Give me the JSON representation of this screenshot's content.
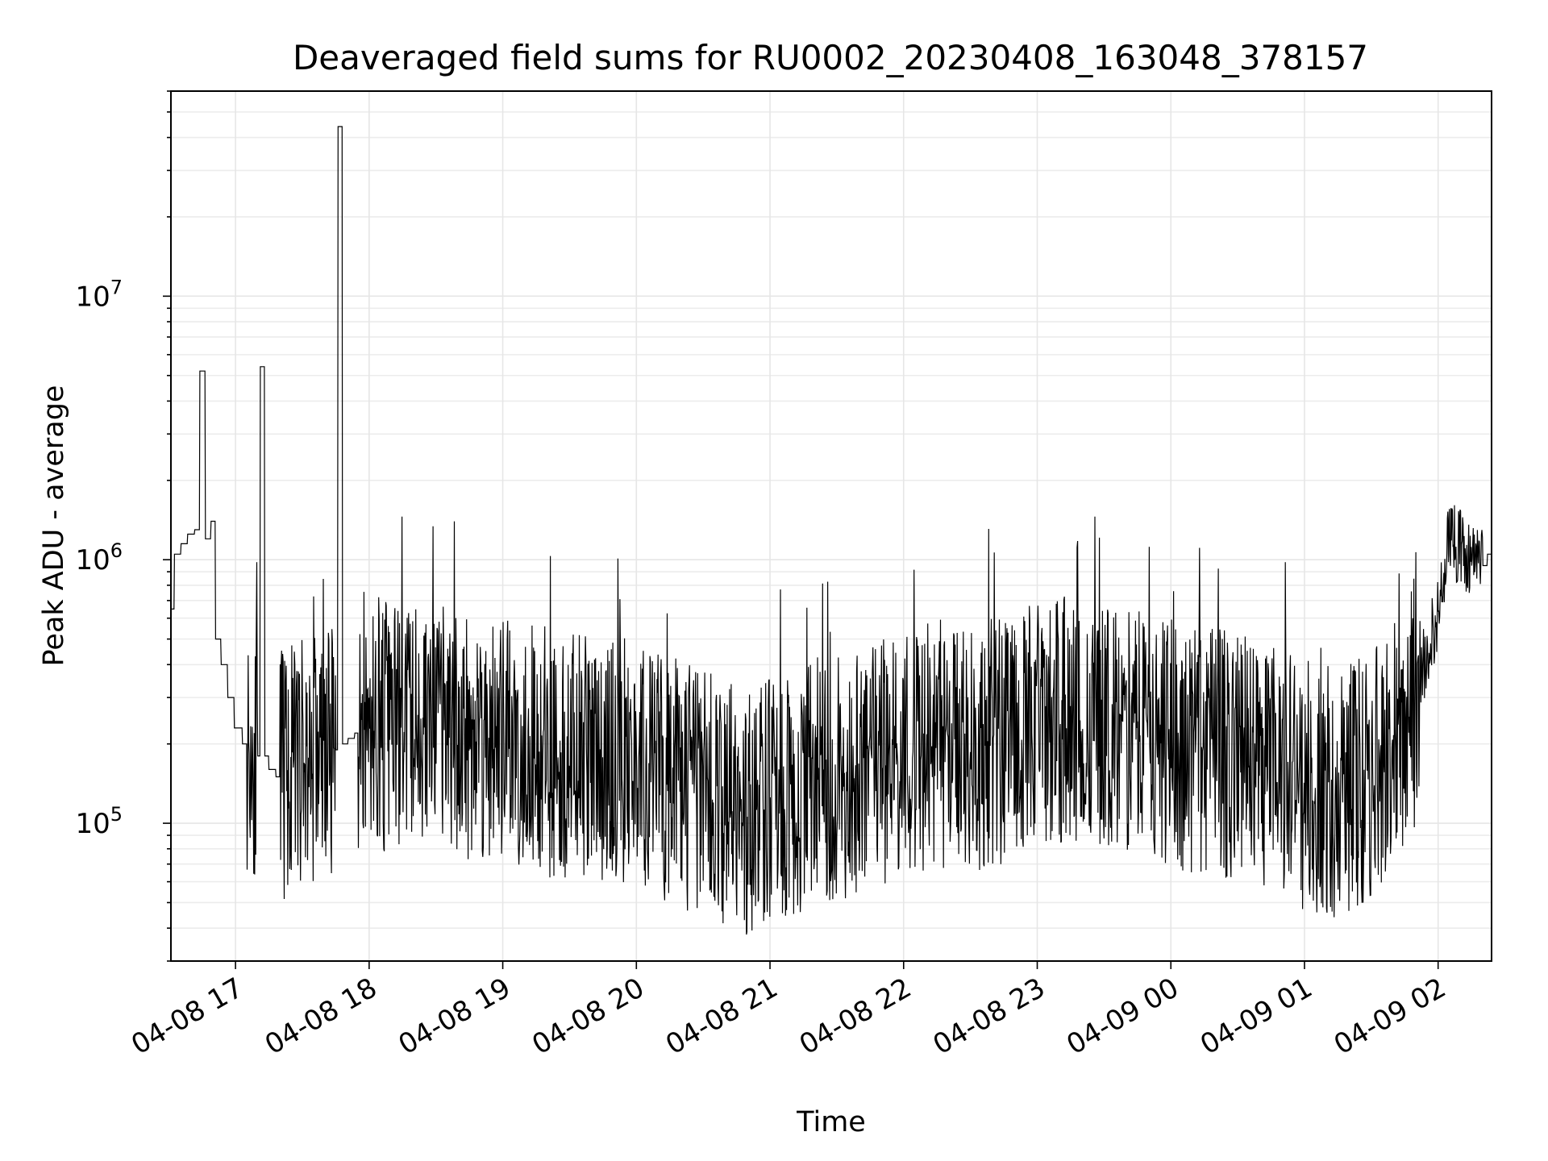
{
  "chart_data": {
    "type": "line",
    "title": "Deaveraged field sums for RU0002_20230408_163048_378157",
    "xlabel": "Time",
    "ylabel": "Peak ADU - average",
    "y_scale": "log",
    "ylim": [
      30000,
      60000000
    ],
    "xlim": [
      "2023-04-08 16:31",
      "2023-04-09 02:24"
    ],
    "grid": true,
    "line_color": "#000000",
    "x_ticks": [
      {
        "label": "04-08 17",
        "time": "2023-04-08 17:00"
      },
      {
        "label": "04-08 18",
        "time": "2023-04-08 18:00"
      },
      {
        "label": "04-08 19",
        "time": "2023-04-08 19:00"
      },
      {
        "label": "04-08 20",
        "time": "2023-04-08 20:00"
      },
      {
        "label": "04-08 21",
        "time": "2023-04-08 21:00"
      },
      {
        "label": "04-08 22",
        "time": "2023-04-08 22:00"
      },
      {
        "label": "04-08 23",
        "time": "2023-04-08 23:00"
      },
      {
        "label": "04-09 00",
        "time": "2023-04-09 00:00"
      },
      {
        "label": "04-09 01",
        "time": "2023-04-09 01:00"
      },
      {
        "label": "04-09 02",
        "time": "2023-04-09 02:00"
      }
    ],
    "y_ticks": [
      {
        "base": "10",
        "exp": "5",
        "value": 100000
      },
      {
        "base": "10",
        "exp": "6",
        "value": 1000000
      },
      {
        "base": "10",
        "exp": "7",
        "value": 10000000
      }
    ],
    "series": [
      {
        "x": [
          "2023-04-08 16:31",
          "2023-04-08 16:34",
          "2023-04-08 16:37",
          "2023-04-08 16:40",
          "2023-04-08 16:43",
          "2023-04-08 16:45",
          "2023-04-08 16:48",
          "2023-04-08 16:50",
          "2023-04-08 16:52",
          "2023-04-08 16:55",
          "2023-04-08 16:58",
          "2023-04-08 17:01",
          "2023-04-08 17:05",
          "2023-04-08 17:10",
          "2023-04-08 17:12",
          "2023-04-08 17:14",
          "2023-04-08 17:16",
          "2023-04-08 17:20",
          "2023-04-08 17:25",
          "2023-04-08 17:30",
          "2023-04-08 17:35",
          "2023-04-08 17:40",
          "2023-04-08 17:45",
          "2023-04-08 17:47",
          "2023-04-08 17:49",
          "2023-04-08 17:52",
          "2023-04-08 17:55",
          "2023-04-08 18:00",
          "2023-04-08 18:10",
          "2023-04-08 18:20",
          "2023-04-08 18:30",
          "2023-04-08 18:40",
          "2023-04-08 18:50",
          "2023-04-08 19:00",
          "2023-04-08 19:15",
          "2023-04-08 19:30",
          "2023-04-08 19:45",
          "2023-04-08 20:00",
          "2023-04-08 20:15",
          "2023-04-08 20:30",
          "2023-04-08 20:45",
          "2023-04-08 21:00",
          "2023-04-08 21:15",
          "2023-04-08 21:30",
          "2023-04-08 21:45",
          "2023-04-08 22:00",
          "2023-04-08 22:15",
          "2023-04-08 22:30",
          "2023-04-08 22:45",
          "2023-04-08 23:00",
          "2023-04-08 23:15",
          "2023-04-08 23:30",
          "2023-04-08 23:45",
          "2023-04-09 00:00",
          "2023-04-09 00:15",
          "2023-04-09 00:30",
          "2023-04-09 00:45",
          "2023-04-09 01:00",
          "2023-04-09 01:15",
          "2023-04-09 01:30",
          "2023-04-09 01:45",
          "2023-04-09 01:50",
          "2023-04-09 01:55",
          "2023-04-09 02:00",
          "2023-04-09 02:05",
          "2023-04-09 02:10",
          "2023-04-09 02:15",
          "2023-04-09 02:20",
          "2023-04-09 02:24"
        ],
        "y": [
          650000,
          1050000,
          1150000,
          1250000,
          1300000,
          5200000,
          1200000,
          1400000,
          500000,
          400000,
          300000,
          230000,
          200000,
          180000,
          5400000,
          180000,
          160000,
          150000,
          160000,
          170000,
          175000,
          180000,
          190000,
          44000000,
          200000,
          210000,
          220000,
          230000,
          230000,
          240000,
          230000,
          220000,
          210000,
          200000,
          190000,
          180000,
          175000,
          165000,
          150000,
          130000,
          110000,
          120000,
          130000,
          150000,
          160000,
          180000,
          200000,
          190000,
          210000,
          230000,
          250000,
          240000,
          220000,
          200000,
          190000,
          175000,
          160000,
          140000,
          130000,
          150000,
          220000,
          300000,
          450000,
          600000,
          1200000,
          1100000,
          1000000,
          950000,
          1050000
        ]
      }
    ]
  }
}
